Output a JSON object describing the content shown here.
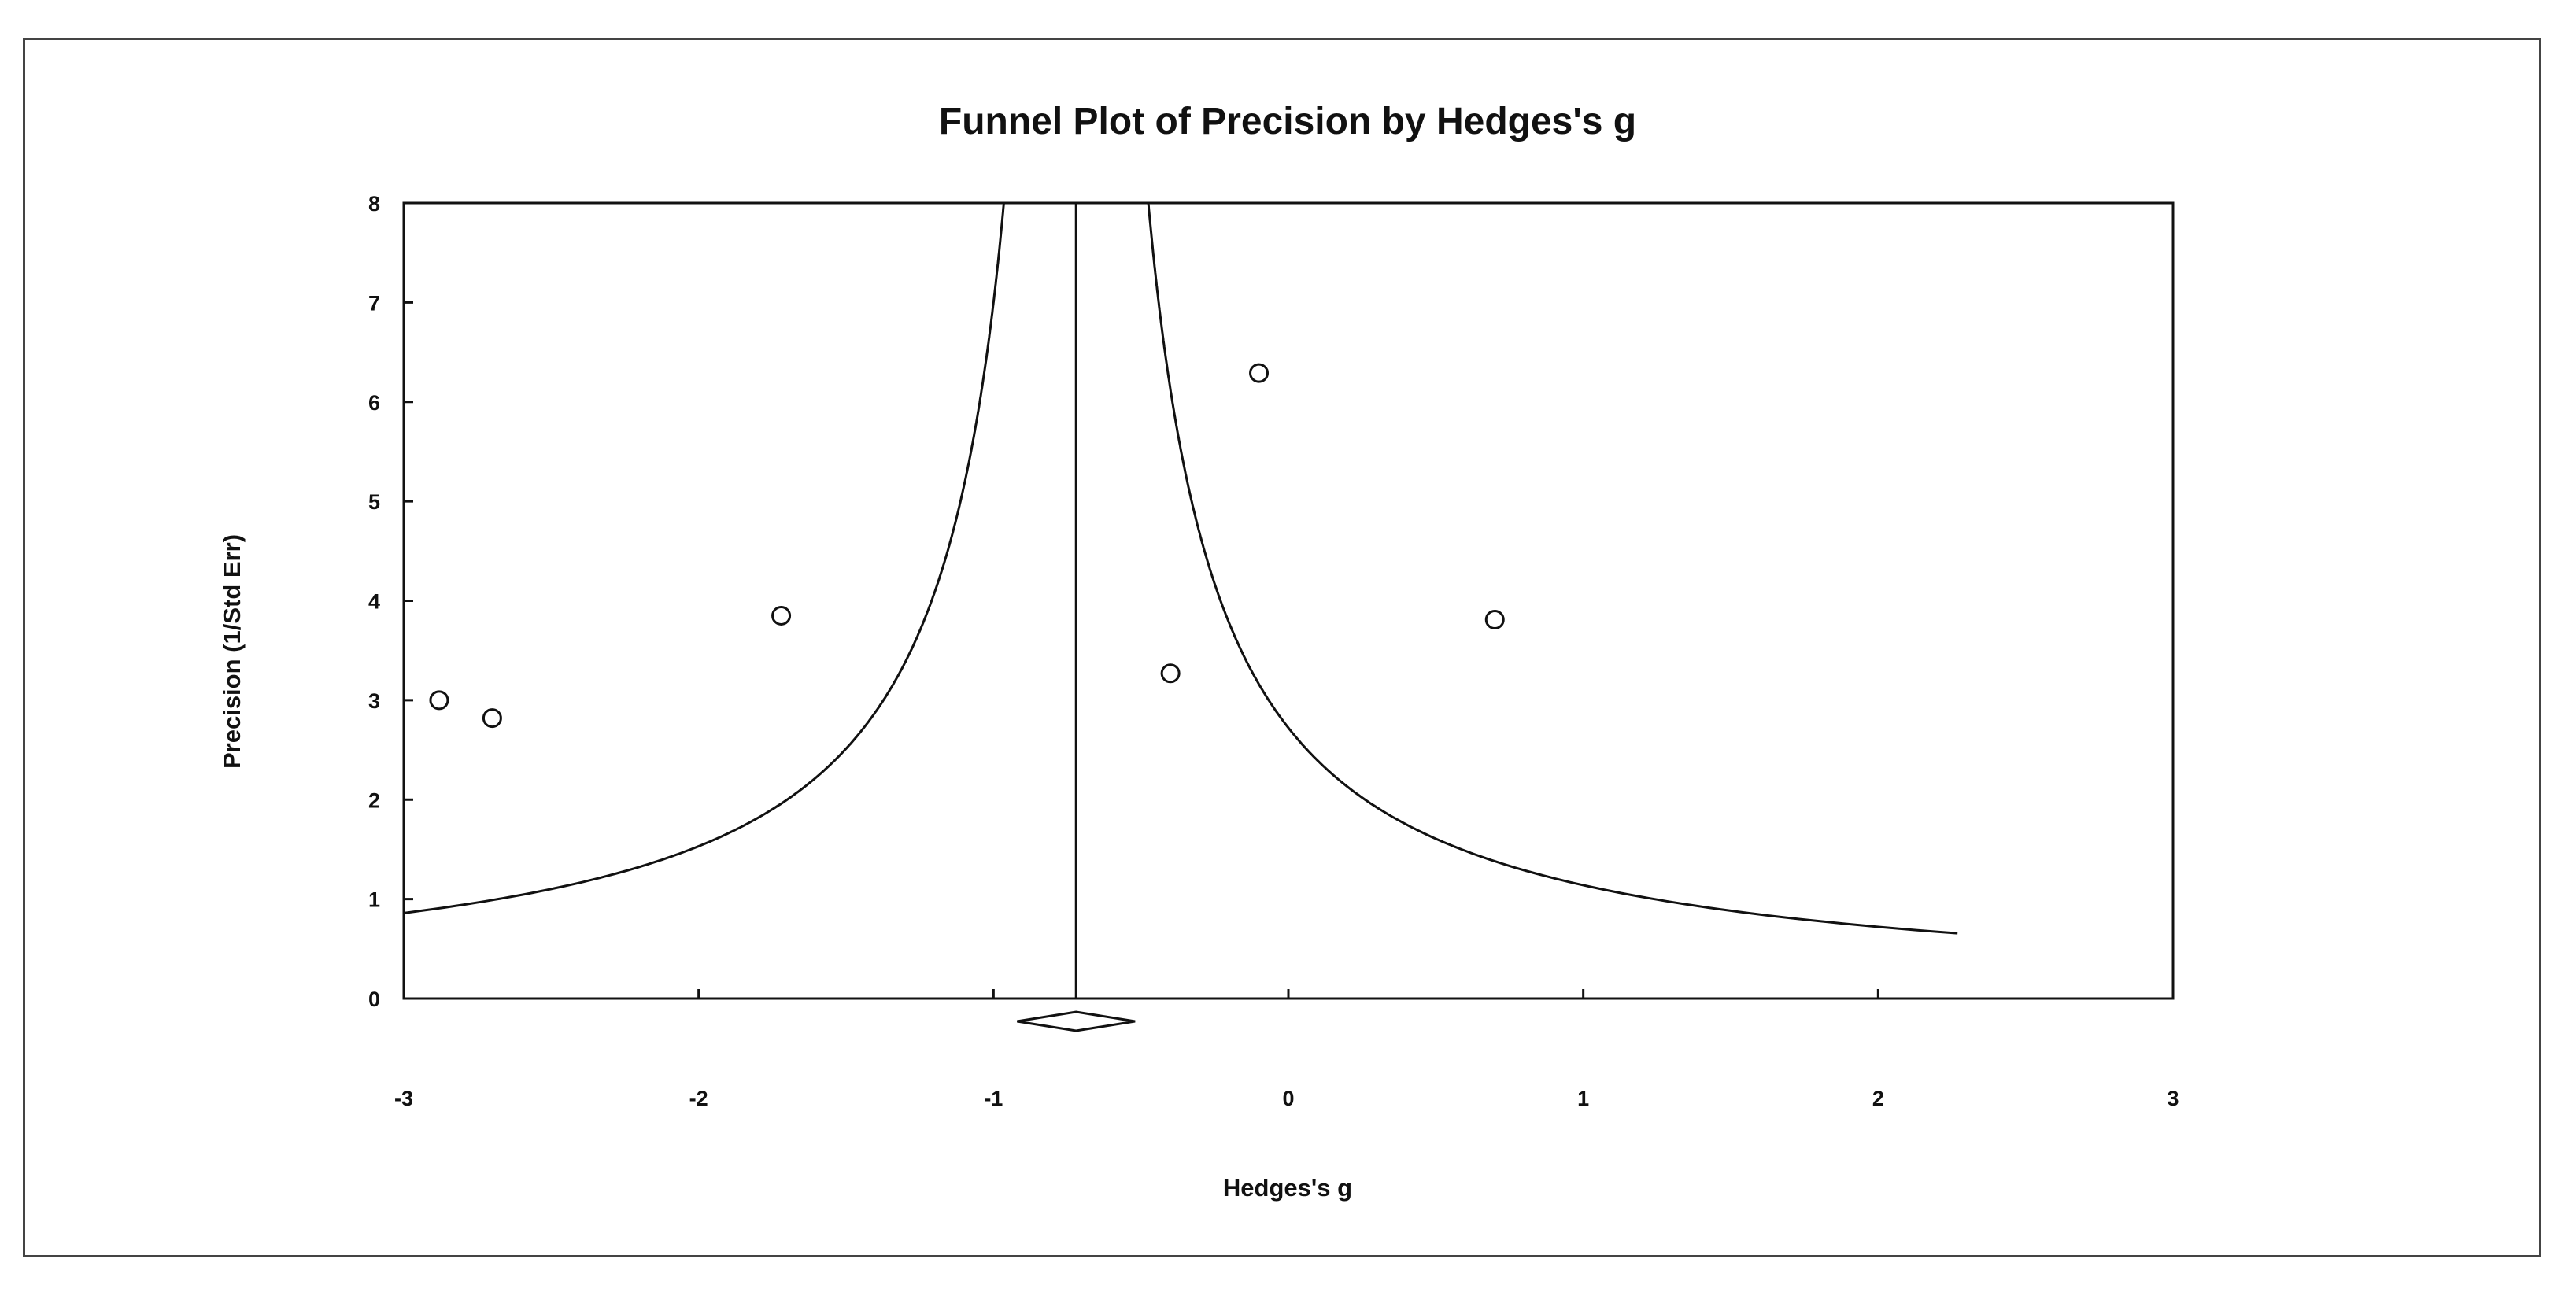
{
  "chart_data": {
    "type": "scatter",
    "title": "Funnel Plot of Precision by Hedges's g",
    "xlabel": "Hedges's g",
    "ylabel": "Precision (1/Std Err)",
    "xlim": [
      -3,
      3
    ],
    "ylim": [
      0,
      8
    ],
    "x_ticks": [
      "-3",
      "-2",
      "-1",
      "0",
      "1",
      "2",
      "3"
    ],
    "y_ticks": [
      "0",
      "1",
      "2",
      "3",
      "4",
      "5",
      "6",
      "7",
      "8"
    ],
    "grid": false,
    "legend": "none",
    "series": [
      {
        "points": [
          {
            "x": -2.88,
            "y": 3.0
          },
          {
            "x": -2.7,
            "y": 2.82
          },
          {
            "x": -1.72,
            "y": 3.85
          },
          {
            "x": -0.4,
            "y": 3.27
          },
          {
            "x": -0.1,
            "y": 6.29
          },
          {
            "x": 0.7,
            "y": 3.81
          }
        ]
      }
    ],
    "pooled_estimate": -0.72,
    "summary_diamond": {
      "center": -0.72,
      "lower": -0.92,
      "upper": -0.52
    },
    "funnel_curve_right_x_max": 2.27,
    "colors": {
      "line": "#111111",
      "marker_fill": "#ffffff",
      "frame": "#444444"
    }
  }
}
